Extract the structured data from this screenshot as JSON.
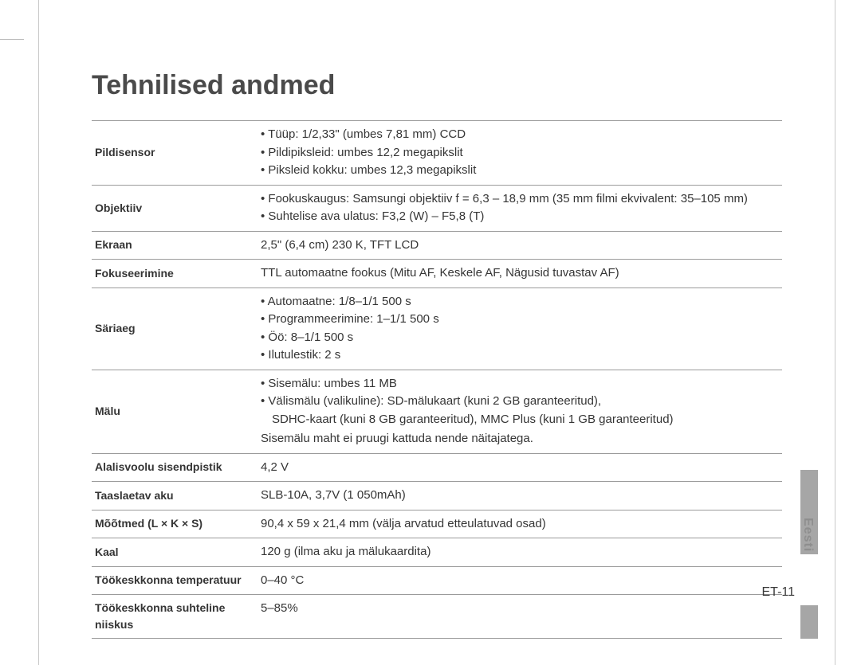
{
  "title": "Tehnilised andmed",
  "sideLabel": "Eesti",
  "pageNumber": "ET-11",
  "rows": {
    "pildisensor": {
      "label": "Pildisensor",
      "items": [
        "Tüüp: 1/2,33\" (umbes 7,81 mm) CCD",
        "Pildipiksleid: umbes 12,2 megapikslit",
        "Piksleid kokku: umbes 12,3 megapikslit"
      ]
    },
    "objektiiv": {
      "label": "Objektiiv",
      "items": [
        "Fookuskaugus: Samsungi objektiiv f = 6,3 – 18,9 mm (35 mm filmi ekvivalent: 35–105 mm)",
        "Suhtelise ava ulatus: F3,2 (W) – F5,8 (T)"
      ]
    },
    "ekraan": {
      "label": "Ekraan",
      "value": "2,5\" (6,4 cm) 230 K, TFT LCD"
    },
    "fokuseerimine": {
      "label": "Fokuseerimine",
      "value": "TTL automaatne fookus (Mitu AF, Keskele AF, Nägusid tuvastav AF)"
    },
    "sariaeg": {
      "label": "Säriaeg",
      "items": [
        "Automaatne: 1/8–1/1 500 s",
        "Programmeerimine: 1–1/1 500 s",
        "Öö: 8–1/1 500 s",
        "Ilutulestik: 2 s"
      ]
    },
    "malu": {
      "label": "Mälu",
      "items": [
        "Sisemälu: umbes 11 MB",
        "Välismälu (valikuline): SD-mälukaart (kuni 2 GB garanteeritud),"
      ],
      "indent": "SDHC-kaart (kuni 8 GB garanteeritud), MMC Plus (kuni 1 GB garanteeritud)",
      "note": "Sisemälu maht ei pruugi kattuda nende näitajatega."
    },
    "alalisvoolu": {
      "label": "Alalisvoolu sisendpistik",
      "value": "4,2 V"
    },
    "aku": {
      "label": "Taaslaetav aku",
      "value": "SLB-10A, 3,7V (1 050mAh)"
    },
    "mootmed": {
      "label": "Mõõtmed (L × K × S)",
      "value": "90,4 x 59 x 21,4 mm (välja arvatud etteulatuvad osad)"
    },
    "kaal": {
      "label": "Kaal",
      "value": "120 g (ilma aku ja mälukaardita)"
    },
    "temp": {
      "label": "Töökeskkonna temperatuur",
      "value": "0–40 °C"
    },
    "niiskus": {
      "label": "Töökeskkonna suhteline niiskus",
      "value": "5–85%"
    }
  }
}
